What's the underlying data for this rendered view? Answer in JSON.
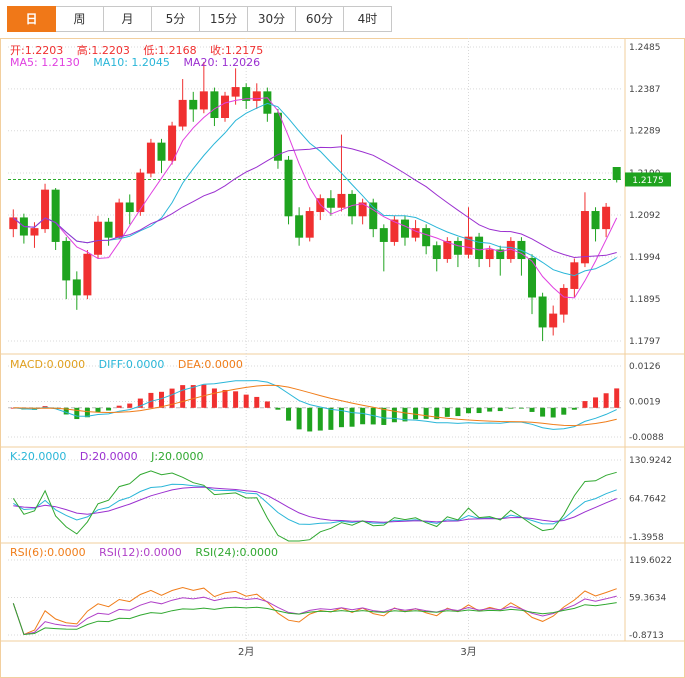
{
  "toolbar": {
    "tabs": [
      {
        "name": "day",
        "label": "日",
        "active": true
      },
      {
        "name": "week",
        "label": "周",
        "active": false
      },
      {
        "name": "month",
        "label": "月",
        "active": false
      },
      {
        "name": "5min",
        "label": "5分",
        "active": false
      },
      {
        "name": "15min",
        "label": "15分",
        "active": false
      },
      {
        "name": "30min",
        "label": "30分",
        "active": false
      },
      {
        "name": "60min",
        "label": "60分",
        "active": false
      },
      {
        "name": "4hour",
        "label": "4时",
        "active": false
      }
    ]
  },
  "main_chart": {
    "ohlc_readout": {
      "open": "开:1.2203",
      "high": "高:1.2203",
      "low": "低:1.2168",
      "close": "收:1.2175"
    },
    "ma_readout": {
      "ma5": "MA5: 1.2130",
      "ma10": "MA10: 1.2045",
      "ma20": "MA20: 1.2026"
    },
    "y_labels": [
      "1.2485",
      "1.2387",
      "1.2289",
      "1.2190",
      "1.2092",
      "1.1994",
      "1.1895",
      "1.1797"
    ],
    "current_price_label": "1.2175"
  },
  "macd_panel": {
    "readout": {
      "macd": "MACD:0.0000",
      "diff": "DIFF:0.0000",
      "dea": "DEA:0.0000"
    },
    "y_labels": [
      "0.0126",
      "0.0019",
      "-0.0088"
    ]
  },
  "kdj_panel": {
    "readout": {
      "k": "K:20.0000",
      "d": "D:20.0000",
      "j": "J:20.0000"
    },
    "y_labels": [
      "130.9242",
      "64.7642",
      "-1.3958"
    ]
  },
  "rsi_panel": {
    "readout": {
      "rsi6": "RSI(6):0.0000",
      "rsi12": "RSI(12):0.0000",
      "rsi24": "RSI(24):0.0000"
    },
    "y_labels": [
      "119.6022",
      "59.3634",
      "-0.8713"
    ]
  },
  "x_axis": {
    "labels": [
      {
        "text": "2月",
        "index": 22
      },
      {
        "text": "3月",
        "index": 43
      }
    ]
  },
  "colors": {
    "accent": "#f07818",
    "candle_up": "#f03030",
    "candle_down": "#1fa31f",
    "ma5": "#e040e0",
    "ma10": "#2ab6d8",
    "ma20": "#9b30d0",
    "macd_label": "#e0a020",
    "diff": "#2ab6d8",
    "dea": "#f07d1a",
    "k": "#2ab6d8",
    "d": "#9b30d0",
    "j": "#30a830",
    "rsi6": "#f07d1a",
    "rsi12": "#b040c8",
    "rsi24": "#30a830",
    "grid": "#d9d9d9",
    "panel_border": "#f2cf9e",
    "axis_text": "#444444",
    "price_badge": "#1fa31f",
    "price_line": "#2fae2f"
  },
  "chart_data": {
    "type": "candlestick",
    "y_range": [
      1.1769,
      1.2506
    ],
    "ohlc": [
      [
        1.206,
        1.2105,
        1.204,
        1.2085
      ],
      [
        1.2085,
        1.2095,
        1.2025,
        1.2045
      ],
      [
        1.2045,
        1.2075,
        1.2015,
        1.206
      ],
      [
        1.206,
        1.2165,
        1.205,
        1.215
      ],
      [
        1.215,
        1.2155,
        1.201,
        1.203
      ],
      [
        1.203,
        1.204,
        1.1895,
        1.194
      ],
      [
        1.194,
        1.196,
        1.187,
        1.1905
      ],
      [
        1.1905,
        1.201,
        1.1895,
        1.2
      ],
      [
        1.2,
        1.209,
        1.199,
        1.2075
      ],
      [
        1.2075,
        1.2085,
        1.202,
        1.204
      ],
      [
        1.204,
        1.213,
        1.2035,
        1.212
      ],
      [
        1.212,
        1.214,
        1.207,
        1.21
      ],
      [
        1.21,
        1.22,
        1.209,
        1.219
      ],
      [
        1.219,
        1.227,
        1.218,
        1.226
      ],
      [
        1.226,
        1.227,
        1.219,
        1.222
      ],
      [
        1.222,
        1.231,
        1.221,
        1.23
      ],
      [
        1.23,
        1.241,
        1.229,
        1.236
      ],
      [
        1.236,
        1.238,
        1.231,
        1.234
      ],
      [
        1.234,
        1.245,
        1.233,
        1.238
      ],
      [
        1.238,
        1.239,
        1.23,
        1.232
      ],
      [
        1.232,
        1.238,
        1.231,
        1.237
      ],
      [
        1.237,
        1.2435,
        1.235,
        1.239
      ],
      [
        1.239,
        1.24,
        1.234,
        1.236
      ],
      [
        1.236,
        1.24,
        1.234,
        1.238
      ],
      [
        1.238,
        1.239,
        1.231,
        1.233
      ],
      [
        1.233,
        1.234,
        1.22,
        1.222
      ],
      [
        1.222,
        1.223,
        1.207,
        1.209
      ],
      [
        1.209,
        1.211,
        1.202,
        1.204
      ],
      [
        1.204,
        1.211,
        1.203,
        1.21
      ],
      [
        1.21,
        1.214,
        1.208,
        1.213
      ],
      [
        1.213,
        1.215,
        1.209,
        1.211
      ],
      [
        1.211,
        1.228,
        1.21,
        1.214
      ],
      [
        1.214,
        1.215,
        1.207,
        1.209
      ],
      [
        1.209,
        1.213,
        1.207,
        1.212
      ],
      [
        1.212,
        1.213,
        1.204,
        1.206
      ],
      [
        1.206,
        1.207,
        1.196,
        1.203
      ],
      [
        1.203,
        1.209,
        1.202,
        1.208
      ],
      [
        1.208,
        1.209,
        1.202,
        1.204
      ],
      [
        1.204,
        1.208,
        1.203,
        1.206
      ],
      [
        1.206,
        1.207,
        1.2,
        1.202
      ],
      [
        1.202,
        1.203,
        1.196,
        1.199
      ],
      [
        1.199,
        1.204,
        1.198,
        1.203
      ],
      [
        1.203,
        1.204,
        1.197,
        1.2
      ],
      [
        1.2,
        1.211,
        1.199,
        1.204
      ],
      [
        1.204,
        1.205,
        1.197,
        1.199
      ],
      [
        1.199,
        1.202,
        1.197,
        1.201
      ],
      [
        1.201,
        1.202,
        1.195,
        1.199
      ],
      [
        1.199,
        1.204,
        1.198,
        1.203
      ],
      [
        1.203,
        1.204,
        1.195,
        1.199
      ],
      [
        1.199,
        1.2,
        1.186,
        1.19
      ],
      [
        1.19,
        1.191,
        1.1797,
        1.183
      ],
      [
        1.183,
        1.188,
        1.181,
        1.186
      ],
      [
        1.186,
        1.193,
        1.184,
        1.192
      ],
      [
        1.192,
        1.199,
        1.19,
        1.198
      ],
      [
        1.198,
        1.2145,
        1.197,
        1.21
      ],
      [
        1.21,
        1.211,
        1.203,
        1.206
      ],
      [
        1.206,
        1.212,
        1.204,
        1.211
      ],
      [
        1.2203,
        1.2203,
        1.2168,
        1.2175
      ]
    ],
    "last_candle": {
      "open": 1.2203,
      "high": 1.2203,
      "low": 1.2168,
      "close": 1.2175
    },
    "ma_values": {
      "ma5": 1.213,
      "ma10": 1.2045,
      "ma20": 1.2026
    },
    "current_price": 1.2175,
    "indicator_ranges": {
      "macd": [
        -0.0088,
        0.0126
      ],
      "kdj": [
        -1.3958,
        130.9242
      ],
      "rsi": [
        -0.8713,
        119.6022
      ]
    }
  }
}
